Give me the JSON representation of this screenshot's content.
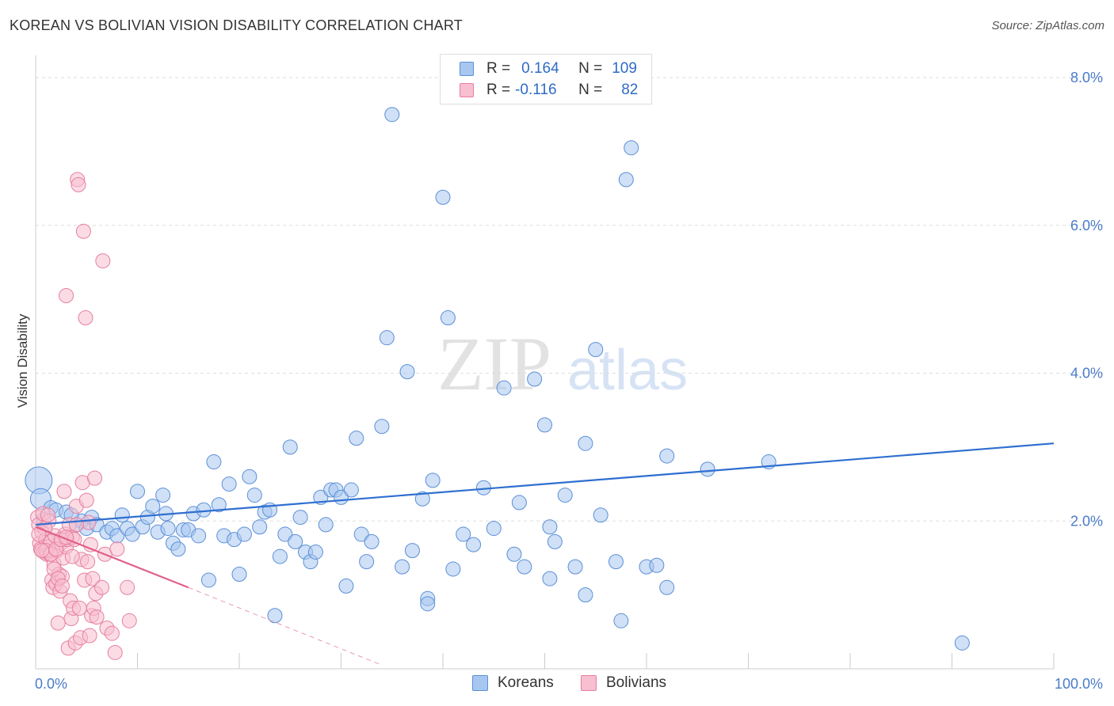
{
  "title": "KOREAN VS BOLIVIAN VISION DISABILITY CORRELATION CHART",
  "source": "Source: ZipAtlas.com",
  "legend_stats": [
    {
      "r_label": "R =",
      "r_value": "0.164",
      "n_label": "N =",
      "n_value": "109",
      "color": "#a8c7f0",
      "border": "#5b8fd6"
    },
    {
      "r_label": "R =",
      "r_value": "-0.116",
      "n_label": "N =",
      "n_value": "82",
      "color": "#f7bfd0",
      "border": "#e67fa0"
    }
  ],
  "watermark": {
    "zip": "ZIP",
    "atlas": "atlas"
  },
  "chart_data": {
    "type": "scatter",
    "title": "KOREAN VS BOLIVIAN VISION DISABILITY CORRELATION CHART",
    "xlabel": "",
    "ylabel": "Vision Disability",
    "xlim": [
      0,
      100
    ],
    "ylim": [
      0,
      8.3
    ],
    "x_tick_labels": [
      "0.0%",
      "100.0%"
    ],
    "y_ticks": [
      2,
      4,
      6,
      8
    ],
    "y_tick_labels": [
      "2.0%",
      "4.0%",
      "6.0%",
      "8.0%"
    ],
    "grid": true,
    "legend_position": "bottom",
    "series": [
      {
        "name": "Koreans",
        "color": "#5b8fd6",
        "fill": "#a8c7f0",
        "trend": {
          "x": [
            0,
            100
          ],
          "y": [
            1.95,
            3.05
          ]
        },
        "points": [
          [
            0.3,
            2.55
          ],
          [
            0.5,
            2.3
          ],
          [
            1.5,
            2.18
          ],
          [
            2,
            2.15
          ],
          [
            3,
            2.12
          ],
          [
            4,
            1.95
          ],
          [
            4.5,
            2.0
          ],
          [
            5,
            1.9
          ],
          [
            5.5,
            2.05
          ],
          [
            6,
            1.95
          ],
          [
            7,
            1.85
          ],
          [
            7.5,
            1.9
          ],
          [
            8,
            1.8
          ],
          [
            8.5,
            2.08
          ],
          [
            9,
            1.9
          ],
          [
            9.5,
            1.82
          ],
          [
            10,
            2.4
          ],
          [
            10.5,
            1.92
          ],
          [
            11,
            2.05
          ],
          [
            11.5,
            2.2
          ],
          [
            12,
            1.85
          ],
          [
            12.5,
            2.35
          ],
          [
            13,
            1.9
          ],
          [
            13.5,
            1.7
          ],
          [
            14,
            1.62
          ],
          [
            14.5,
            1.88
          ],
          [
            15,
            1.88
          ],
          [
            15.5,
            2.1
          ],
          [
            16,
            1.8
          ],
          [
            16.5,
            2.15
          ],
          [
            17,
            1.2
          ],
          [
            17.5,
            2.8
          ],
          [
            18,
            2.22
          ],
          [
            18.5,
            1.8
          ],
          [
            19,
            2.5
          ],
          [
            19.5,
            1.75
          ],
          [
            20,
            1.28
          ],
          [
            20.5,
            1.82
          ],
          [
            21,
            2.6
          ],
          [
            21.5,
            2.35
          ],
          [
            22,
            1.92
          ],
          [
            22.5,
            2.12
          ],
          [
            23,
            2.15
          ],
          [
            23.5,
            0.72
          ],
          [
            24,
            1.52
          ],
          [
            24.5,
            1.82
          ],
          [
            25,
            3.0
          ],
          [
            25.5,
            1.72
          ],
          [
            26,
            2.05
          ],
          [
            26.5,
            1.58
          ],
          [
            27,
            1.45
          ],
          [
            27.5,
            1.58
          ],
          [
            28,
            2.32
          ],
          [
            28.5,
            1.95
          ],
          [
            29,
            2.42
          ],
          [
            29.5,
            2.42
          ],
          [
            30,
            2.32
          ],
          [
            30.5,
            1.12
          ],
          [
            31,
            2.42
          ],
          [
            31.5,
            3.12
          ],
          [
            32,
            1.82
          ],
          [
            32.5,
            1.45
          ],
          [
            33,
            1.72
          ],
          [
            34,
            3.28
          ],
          [
            34.5,
            4.48
          ],
          [
            35,
            7.5
          ],
          [
            36,
            1.38
          ],
          [
            36.5,
            4.02
          ],
          [
            37,
            1.6
          ],
          [
            38,
            2.3
          ],
          [
            38.5,
            0.95
          ],
          [
            38.5,
            0.88
          ],
          [
            39,
            2.55
          ],
          [
            40,
            6.38
          ],
          [
            40.5,
            4.75
          ],
          [
            41,
            1.35
          ],
          [
            42,
            1.82
          ],
          [
            43,
            1.68
          ],
          [
            44,
            2.45
          ],
          [
            45,
            1.9
          ],
          [
            46,
            3.8
          ],
          [
            47,
            1.55
          ],
          [
            47.5,
            2.25
          ],
          [
            48,
            1.38
          ],
          [
            49,
            3.92
          ],
          [
            50,
            3.3
          ],
          [
            50.5,
            1.22
          ],
          [
            50.5,
            1.92
          ],
          [
            51,
            1.72
          ],
          [
            52,
            2.35
          ],
          [
            53,
            1.38
          ],
          [
            54,
            1.0
          ],
          [
            54,
            3.05
          ],
          [
            55,
            4.32
          ],
          [
            55.5,
            2.08
          ],
          [
            57,
            1.45
          ],
          [
            57.5,
            0.65
          ],
          [
            58,
            6.62
          ],
          [
            58.5,
            7.05
          ],
          [
            60,
            1.38
          ],
          [
            61,
            1.4
          ],
          [
            62,
            1.1
          ],
          [
            62,
            2.88
          ],
          [
            66,
            2.7
          ],
          [
            72,
            2.8
          ],
          [
            91,
            0.35
          ],
          [
            0.8,
            2.02
          ],
          [
            3.5,
            2.08
          ],
          [
            12.8,
            2.1
          ]
        ]
      },
      {
        "name": "Bolivians",
        "color": "#e67fa0",
        "fill": "#f7bfd0",
        "trend": {
          "x": [
            0,
            15
          ],
          "y": [
            1.92,
            1.1
          ]
        },
        "trend_dashed": {
          "x": [
            15,
            34
          ],
          "y": [
            1.1,
            0.05
          ]
        },
        "points": [
          [
            0.2,
            2.05
          ],
          [
            0.3,
            1.95
          ],
          [
            0.4,
            1.7
          ],
          [
            0.5,
            1.62
          ],
          [
            0.6,
            1.85
          ],
          [
            0.7,
            2.1
          ],
          [
            0.8,
            1.58
          ],
          [
            1,
            1.75
          ],
          [
            1.1,
            1.55
          ],
          [
            1.2,
            1.65
          ],
          [
            1.3,
            2.0
          ],
          [
            1.4,
            1.55
          ],
          [
            1.5,
            1.72
          ],
          [
            1.6,
            1.2
          ],
          [
            1.7,
            1.1
          ],
          [
            1.8,
            1.42
          ],
          [
            1.9,
            1.8
          ],
          [
            2,
            1.15
          ],
          [
            2.1,
            1.6
          ],
          [
            2.2,
            0.62
          ],
          [
            2.3,
            1.28
          ],
          [
            2.4,
            1.05
          ],
          [
            2.5,
            1.7
          ],
          [
            2.6,
            1.25
          ],
          [
            2.7,
            1.5
          ],
          [
            2.8,
            2.4
          ],
          [
            2.9,
            1.82
          ],
          [
            3,
            1.65
          ],
          [
            3.1,
            1.75
          ],
          [
            3.2,
            0.28
          ],
          [
            3.3,
            1.95
          ],
          [
            3.4,
            0.92
          ],
          [
            3.5,
            0.68
          ],
          [
            3.6,
            1.78
          ],
          [
            3.7,
            0.82
          ],
          [
            3.8,
            1.75
          ],
          [
            3.9,
            0.35
          ],
          [
            4,
            2.2
          ],
          [
            4.1,
            6.62
          ],
          [
            4.2,
            6.55
          ],
          [
            4.3,
            0.82
          ],
          [
            4.4,
            0.42
          ],
          [
            4.5,
            1.48
          ],
          [
            4.6,
            2.52
          ],
          [
            4.7,
            5.92
          ],
          [
            4.8,
            1.2
          ],
          [
            4.9,
            4.75
          ],
          [
            5,
            2.28
          ],
          [
            5.1,
            1.45
          ],
          [
            5.2,
            1.98
          ],
          [
            5.3,
            0.45
          ],
          [
            5.4,
            1.68
          ],
          [
            5.5,
            0.72
          ],
          [
            5.6,
            1.22
          ],
          [
            5.7,
            0.82
          ],
          [
            5.8,
            2.58
          ],
          [
            5.9,
            1.02
          ],
          [
            6,
            0.7
          ],
          [
            6.5,
            1.1
          ],
          [
            6.6,
            5.52
          ],
          [
            6.8,
            1.55
          ],
          [
            7,
            0.55
          ],
          [
            7.5,
            0.48
          ],
          [
            7.8,
            0.22
          ],
          [
            8,
            1.62
          ],
          [
            9,
            1.1
          ],
          [
            9.2,
            0.65
          ],
          [
            3.0,
            5.05
          ],
          [
            1.0,
            1.6
          ],
          [
            1.5,
            1.55
          ],
          [
            2.0,
            1.62
          ],
          [
            2.5,
            1.75
          ],
          [
            3.0,
            1.78
          ],
          [
            0.9,
            1.9
          ],
          [
            1.2,
            2.08
          ],
          [
            0.6,
            1.6
          ],
          [
            1.8,
            1.35
          ],
          [
            2.2,
            1.22
          ],
          [
            4.0,
            1.95
          ],
          [
            3.6,
            1.52
          ],
          [
            0.3,
            1.82
          ],
          [
            2.6,
            1.12
          ]
        ]
      }
    ]
  },
  "bottom_legend": [
    {
      "label": "Koreans",
      "color": "#a8c7f0",
      "border": "#5b8fd6"
    },
    {
      "label": "Bolivians",
      "color": "#f7bfd0",
      "border": "#e67fa0"
    }
  ]
}
